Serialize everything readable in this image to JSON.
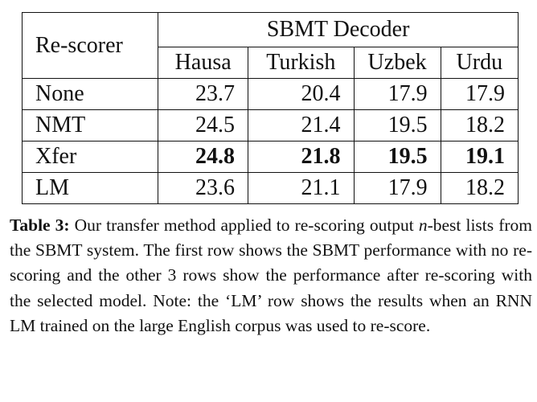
{
  "table": {
    "header": {
      "rescorer_label": "Re-scorer",
      "group_label": "SBMT Decoder",
      "languages": [
        "Hausa",
        "Turkish",
        "Uzbek",
        "Urdu"
      ]
    },
    "rows": [
      {
        "name": "None",
        "values": [
          "23.7",
          "20.4",
          "17.9",
          "17.9"
        ],
        "bold": false
      },
      {
        "name": "NMT",
        "values": [
          "24.5",
          "21.4",
          "19.5",
          "18.2"
        ],
        "bold": false
      },
      {
        "name": "Xfer",
        "values": [
          "24.8",
          "21.8",
          "19.5",
          "19.1"
        ],
        "bold": true
      },
      {
        "name": "LM",
        "values": [
          "23.6",
          "21.1",
          "17.9",
          "18.2"
        ],
        "bold": false
      }
    ]
  },
  "caption": {
    "label": "Table 3:",
    "text_before_n": "Our transfer method applied to re-scoring output",
    "n_symbol": "n",
    "text_after_n": "-best lists from the SBMT system.  The first row shows the SBMT performance with no re-scoring and the other 3 rows show the performance after re-scoring with the selected model. Note: the ‘LM’ row shows the results when an RNN LM trained on the large English corpus was used to re-score."
  }
}
